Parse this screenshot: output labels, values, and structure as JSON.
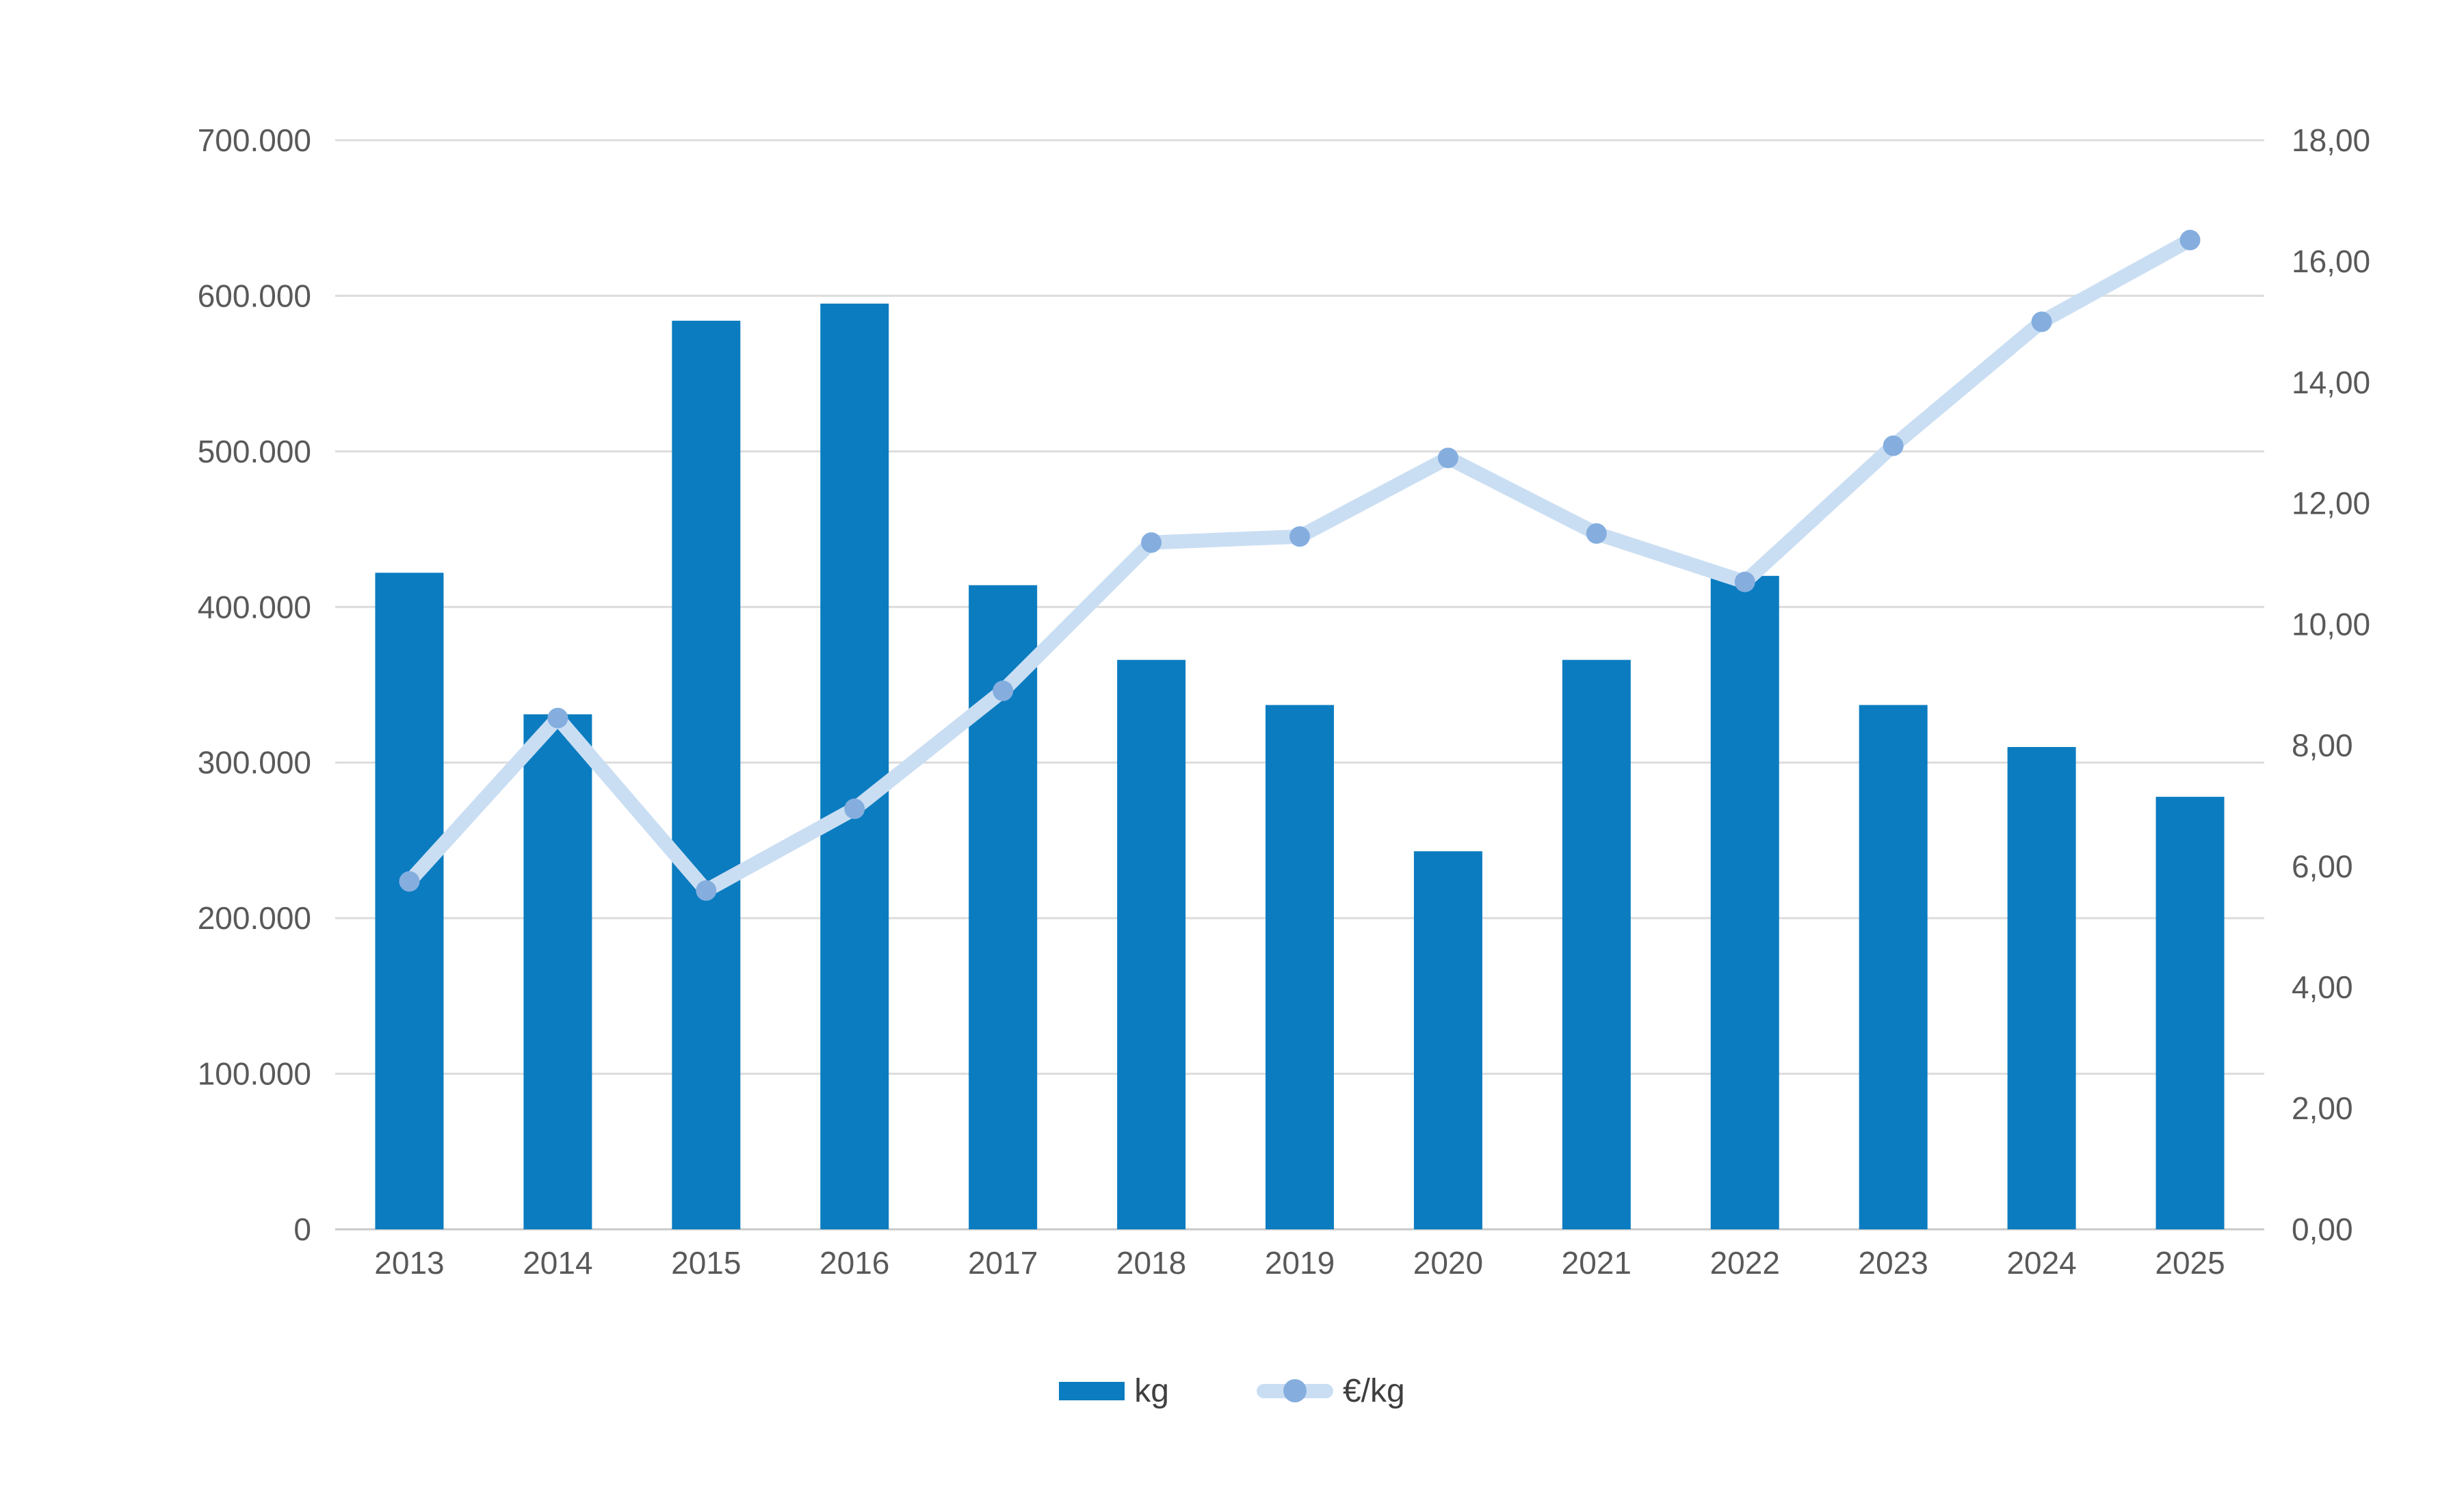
{
  "chart_data": {
    "type": "combo-bar-line",
    "categories": [
      "2013",
      "2014",
      "2015",
      "2016",
      "2017",
      "2018",
      "2019",
      "2020",
      "2021",
      "2022",
      "2023",
      "2024",
      "2025"
    ],
    "series": [
      {
        "name": "kg",
        "type": "bar",
        "axis": "left",
        "color": "#0b7cc0",
        "values": [
          422000,
          331000,
          584000,
          595000,
          414000,
          366000,
          337000,
          243000,
          366000,
          420000,
          337000,
          310000,
          278000
        ]
      },
      {
        "name": "€/kg",
        "type": "line",
        "axis": "right",
        "line_color": "#cadef3",
        "marker_color": "#85aedf",
        "values": [
          5.75,
          8.45,
          5.6,
          6.95,
          8.9,
          11.35,
          11.45,
          12.75,
          11.5,
          10.7,
          12.95,
          15.0,
          16.35
        ]
      }
    ],
    "left_axis": {
      "min": 0,
      "max": 700000,
      "step": 100000,
      "tick_labels": [
        "0",
        "100.000",
        "200.000",
        "300.000",
        "400.000",
        "500.000",
        "600.000",
        "700.000"
      ]
    },
    "right_axis": {
      "min": 0,
      "max": 18,
      "step": 2,
      "tick_labels": [
        "0,00",
        "2,00",
        "4,00",
        "6,00",
        "8,00",
        "10,00",
        "12,00",
        "14,00",
        "16,00",
        "18,00"
      ]
    },
    "grid": true,
    "legend_position": "bottom",
    "colors": {
      "gridline": "#dcdcdc",
      "baseline": "#c9c9c9",
      "tick_text": "#595959",
      "background": "#ffffff"
    }
  }
}
